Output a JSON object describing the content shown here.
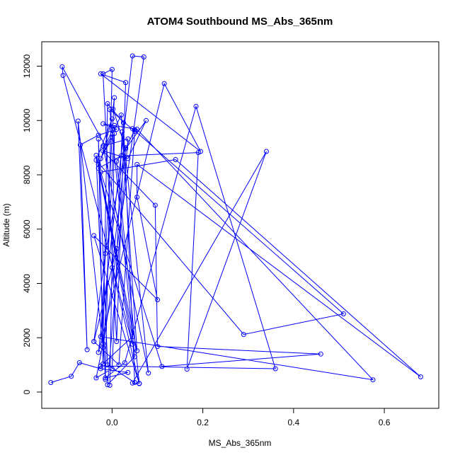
{
  "chart_data": {
    "type": "line",
    "title": "ATOM4 Southbound MS_Abs_365nm",
    "xlabel": "MS_Abs_365nm",
    "ylabel": "Altitude (m)",
    "xlim": [
      -0.155,
      0.72
    ],
    "ylim": [
      -600,
      12900
    ],
    "xticks": [
      0.0,
      0.2,
      0.4,
      0.6
    ],
    "xtick_labels": [
      "0.0",
      "0.2",
      "0.4",
      "0.6"
    ],
    "yticks": [
      0,
      2000,
      4000,
      6000,
      8000,
      10000,
      12000
    ],
    "ytick_labels": [
      "0",
      "2000",
      "4000",
      "6000",
      "8000",
      "10000",
      "12000"
    ],
    "marker": "open-circle",
    "grid": false,
    "series": [
      {
        "color": "#0000ff",
        "x": [
          -0.135,
          -0.09,
          -0.072,
          -0.025,
          0.035,
          -0.015,
          0.028,
          0.185,
          0.36,
          -0.025,
          0.045,
          -0.03,
          0.055,
          0.022,
          0.0,
          -0.035,
          -0.02,
          -0.01,
          0.025,
          0.05,
          -0.01,
          -0.03,
          -0.02,
          0.005,
          -0.015,
          -0.11,
          -0.108,
          0.045,
          -0.035,
          -0.015,
          0.0,
          -0.02,
          0.01,
          0.03,
          -0.025,
          0.195,
          0.115,
          -0.03,
          0.045,
          0.07,
          -0.02,
          -0.075,
          -0.055,
          -0.07,
          -0.03,
          0.01,
          -0.02,
          0.055,
          0.575,
          -0.025,
          0.005,
          0.002,
          0.03,
          0.05,
          0.045,
          0.51,
          0.29,
          -0.035,
          0.0,
          -0.03,
          0.02,
          0.19,
          0.165,
          0.34,
          0.045,
          0.06,
          0.01,
          0.075,
          0.035,
          -0.02,
          0.095,
          0.1,
          0.46,
          0.11,
          -0.025,
          0.14,
          0.68,
          0.055,
          0.055,
          0.1,
          -0.04,
          0.06,
          0.0,
          0.03,
          -0.015,
          -0.04,
          0.01,
          -0.04,
          0.015,
          0.05,
          -0.005,
          0.05,
          -0.01,
          0.035,
          -0.02,
          0.08,
          0.02,
          -0.025,
          0.005,
          -0.005
        ],
        "y": [
          350,
          580,
          1080,
          860,
          720,
          520,
          1080,
          10520,
          860,
          960,
          2040,
          8380,
          1520,
          9580,
          860,
          520,
          1780,
          10620,
          9920,
          350,
          1000,
          9320,
          1040,
          9820,
          9060,
          11980,
          11660,
          1760,
          8720,
          460,
          11880,
          11720,
          1860,
          11400,
          11720,
          8860,
          11360,
          1460,
          12380,
          12340,
          1640,
          9980,
          1560,
          9100,
          9460,
          9680,
          9880,
          9680,
          450,
          2040,
          10840,
          10420,
          8960,
          9660,
          9700,
          2880,
          2120,
          8540,
          10060,
          8240,
          8700,
          8820,
          840,
          8860,
          330,
          320,
          8500,
          10000,
          8600,
          8880,
          6880,
          1680,
          1400,
          940,
          8100,
          8560,
          560,
          8380,
          7180,
          3400,
          5760,
          310,
          4580,
          9000,
          5100,
          1860,
          5280,
          1860,
          1000,
          9600,
          10400,
          1300,
          270,
          9320,
          9060,
          700,
          10200,
          8600,
          9520,
          250
        ]
      }
    ]
  }
}
